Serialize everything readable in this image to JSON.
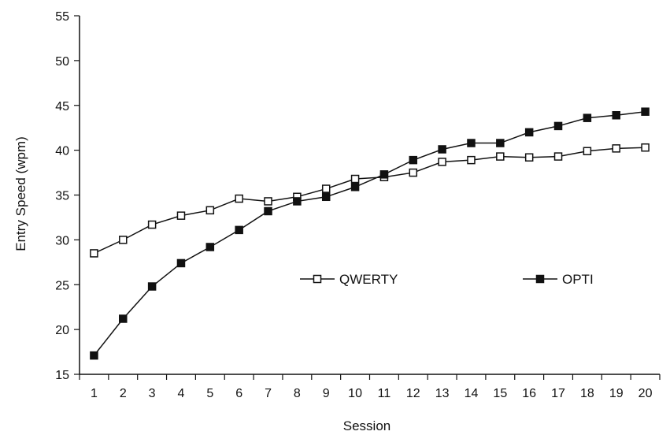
{
  "chart_data": {
    "type": "line",
    "title": "",
    "xlabel": "Session",
    "ylabel": "Entry Speed (wpm)",
    "x": [
      1,
      2,
      3,
      4,
      5,
      6,
      7,
      8,
      9,
      10,
      11,
      12,
      13,
      14,
      15,
      16,
      17,
      18,
      19,
      20
    ],
    "ylim": [
      15,
      55
    ],
    "yticks": [
      15,
      20,
      25,
      30,
      35,
      40,
      45,
      50,
      55
    ],
    "grid": false,
    "legend_placement": "center",
    "series": [
      {
        "name": "QWERTY",
        "marker": "open-square",
        "color": "#111111",
        "values": [
          28.5,
          30.0,
          31.7,
          32.7,
          33.3,
          34.6,
          34.3,
          34.8,
          35.7,
          36.8,
          37.0,
          37.5,
          38.7,
          38.9,
          39.3,
          39.2,
          39.3,
          39.9,
          40.2,
          40.3
        ]
      },
      {
        "name": "OPTI",
        "marker": "filled-square",
        "color": "#111111",
        "values": [
          17.1,
          21.2,
          24.8,
          27.4,
          29.2,
          31.1,
          33.2,
          34.3,
          34.8,
          35.9,
          37.3,
          38.9,
          40.1,
          40.8,
          40.8,
          42.0,
          42.7,
          43.6,
          43.9,
          44.3
        ]
      }
    ]
  }
}
